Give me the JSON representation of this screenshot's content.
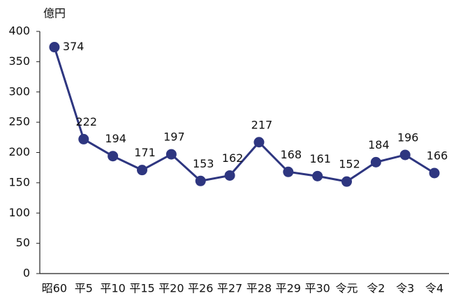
{
  "chart_data": {
    "type": "line",
    "ylabel": "億円",
    "categories": [
      "昭60",
      "平5",
      "平10",
      "平15",
      "平20",
      "平26",
      "平27",
      "平28",
      "平29",
      "平30",
      "令元",
      "令2",
      "令3",
      "令4"
    ],
    "values": [
      374,
      222,
      194,
      171,
      197,
      153,
      162,
      217,
      168,
      161,
      152,
      184,
      196,
      166
    ],
    "color": "#2e3680",
    "ylim": [
      0,
      400
    ],
    "yticks": [
      0,
      50,
      100,
      150,
      200,
      250,
      300,
      350,
      400
    ],
    "grid": false
  }
}
